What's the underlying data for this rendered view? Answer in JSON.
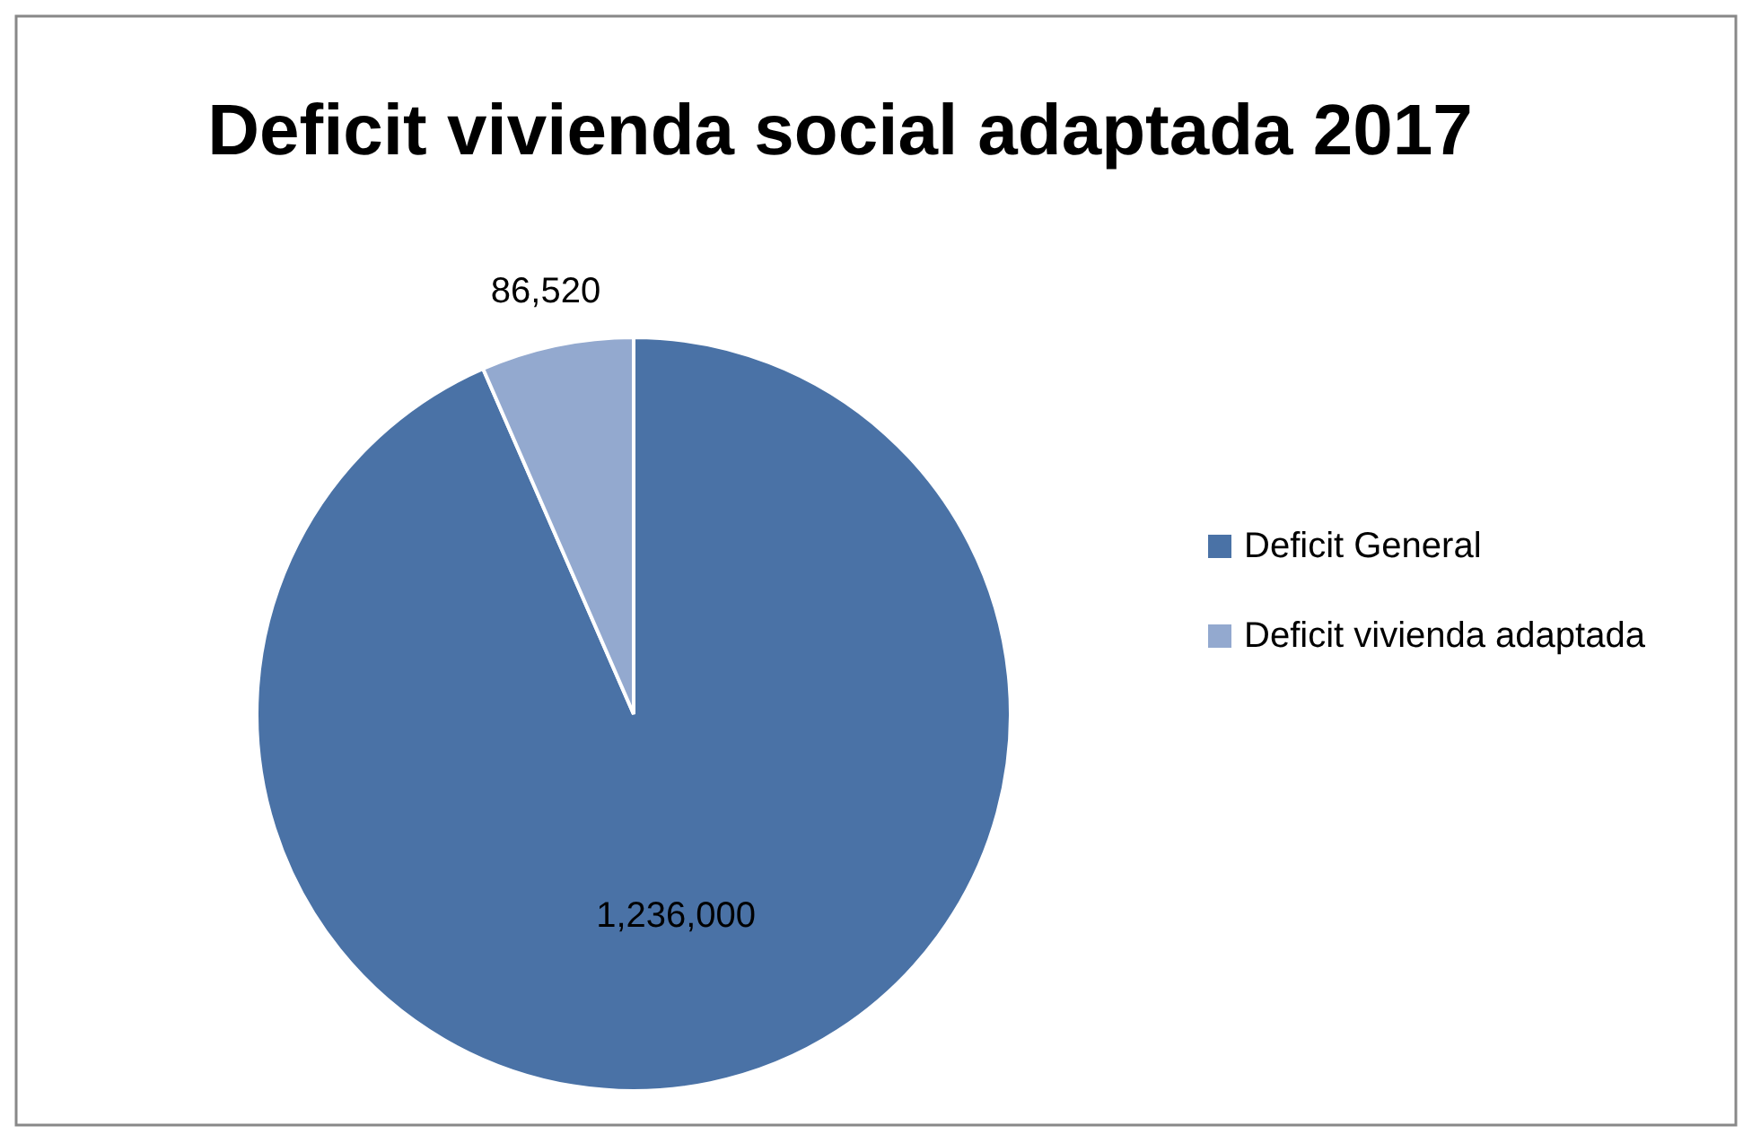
{
  "chart_data": {
    "type": "pie",
    "title": "Deficit vivienda social adaptada 2017",
    "categories": [
      "Deficit General",
      "Deficit vivienda adaptada"
    ],
    "values": [
      1236000,
      86520
    ],
    "colors": [
      "#4a72a6",
      "#93a9cf"
    ],
    "value_labels": [
      "1,236,000",
      "86,520"
    ],
    "legend": "right"
  }
}
